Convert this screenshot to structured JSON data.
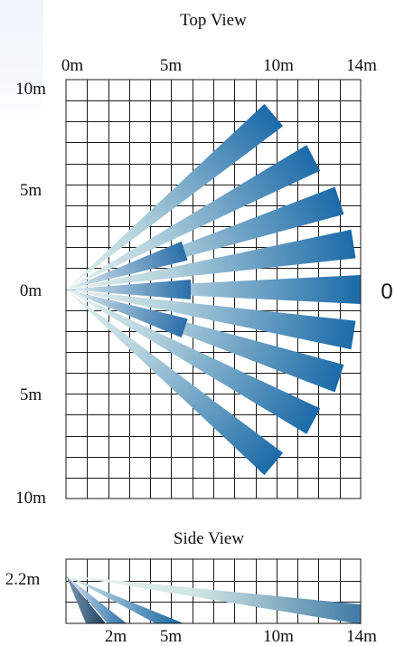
{
  "top_view": {
    "title": "Top View",
    "x_ticks": [
      "0m",
      "5m",
      "10m",
      "14m"
    ],
    "y_ticks": [
      "10m",
      "5m",
      "0m",
      "5m",
      "10m"
    ],
    "side_marker": "0",
    "colors": {
      "near": "#d8ece9",
      "far": "#1b6aa8"
    },
    "long_beam_angles_deg": [
      40,
      28,
      18,
      9,
      0,
      -9,
      -18,
      -28,
      -40
    ],
    "short_beam_angles_deg": [
      18,
      0,
      -18
    ]
  },
  "side_view": {
    "title": "Side View",
    "height_label": "2.2m",
    "x_ticks": [
      "2m",
      "5m",
      "10m",
      "14m"
    ],
    "colors": {
      "near": "#d8ece9",
      "mid": "#2f6f9a",
      "far": "#1b6aa8",
      "dark": "#1c3f5e"
    }
  }
}
